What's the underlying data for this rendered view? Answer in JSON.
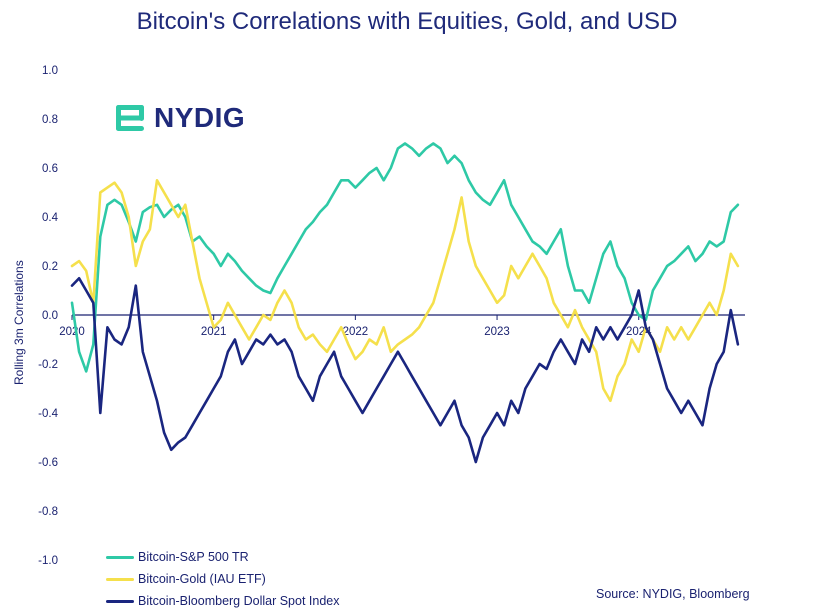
{
  "brand": {
    "name": "NYDIG",
    "accent": "#2ec9a6",
    "navy": "#1f2a7a"
  },
  "chart_data": {
    "type": "line",
    "title": "Bitcoin's Correlations with Equities, Gold, and USD",
    "xlabel": "",
    "ylabel": "Rolling 3m Correlations",
    "xlim": [
      2020.0,
      2024.75
    ],
    "ylim": [
      -1.0,
      1.0
    ],
    "yticks": [
      1.0,
      0.8,
      0.6,
      0.4,
      0.2,
      0.0,
      -0.2,
      -0.4,
      -0.6,
      -0.8,
      -1.0
    ],
    "ytick_labels": [
      "1.0",
      "0.8",
      "0.6",
      "0.4",
      "0.2",
      "0.0",
      "-0.2",
      "-0.4",
      "-0.6",
      "-0.8",
      "-1.0"
    ],
    "xticks": [
      2020,
      2021,
      2022,
      2023,
      2024
    ],
    "xtick_labels": [
      "2020",
      "2021",
      "2022",
      "2023",
      "2024"
    ],
    "grid": false,
    "legend_position": "bottom-left",
    "source": "Source: NYDIG, Bloomberg",
    "series": [
      {
        "name": "Bitcoin-S&P 500 TR",
        "color": "#2ec9a6",
        "x": [
          2020.0,
          2020.05,
          2020.1,
          2020.15,
          2020.2,
          2020.25,
          2020.3,
          2020.35,
          2020.4,
          2020.45,
          2020.5,
          2020.55,
          2020.6,
          2020.65,
          2020.7,
          2020.75,
          2020.8,
          2020.85,
          2020.9,
          2020.95,
          2021.0,
          2021.05,
          2021.1,
          2021.15,
          2021.2,
          2021.25,
          2021.3,
          2021.35,
          2021.4,
          2021.45,
          2021.5,
          2021.55,
          2021.6,
          2021.65,
          2021.7,
          2021.75,
          2021.8,
          2021.85,
          2021.9,
          2021.95,
          2022.0,
          2022.05,
          2022.1,
          2022.15,
          2022.2,
          2022.25,
          2022.3,
          2022.35,
          2022.4,
          2022.45,
          2022.5,
          2022.55,
          2022.6,
          2022.65,
          2022.7,
          2022.75,
          2022.8,
          2022.85,
          2022.9,
          2022.95,
          2023.0,
          2023.05,
          2023.1,
          2023.15,
          2023.2,
          2023.25,
          2023.3,
          2023.35,
          2023.4,
          2023.45,
          2023.5,
          2023.55,
          2023.6,
          2023.65,
          2023.7,
          2023.75,
          2023.8,
          2023.85,
          2023.9,
          2023.95,
          2024.0,
          2024.05,
          2024.1,
          2024.15,
          2024.2,
          2024.25,
          2024.3,
          2024.35,
          2024.4,
          2024.45,
          2024.5,
          2024.55,
          2024.6,
          2024.65,
          2024.7
        ],
        "values": [
          0.05,
          -0.15,
          -0.23,
          -0.12,
          0.32,
          0.45,
          0.47,
          0.45,
          0.38,
          0.3,
          0.42,
          0.44,
          0.45,
          0.4,
          0.43,
          0.45,
          0.4,
          0.3,
          0.32,
          0.28,
          0.25,
          0.2,
          0.25,
          0.22,
          0.18,
          0.15,
          0.12,
          0.1,
          0.09,
          0.15,
          0.2,
          0.25,
          0.3,
          0.35,
          0.38,
          0.42,
          0.45,
          0.5,
          0.55,
          0.55,
          0.52,
          0.55,
          0.58,
          0.6,
          0.55,
          0.6,
          0.68,
          0.7,
          0.68,
          0.65,
          0.68,
          0.7,
          0.68,
          0.62,
          0.65,
          0.62,
          0.55,
          0.5,
          0.47,
          0.45,
          0.5,
          0.55,
          0.45,
          0.4,
          0.35,
          0.3,
          0.28,
          0.25,
          0.3,
          0.35,
          0.2,
          0.1,
          0.1,
          0.05,
          0.15,
          0.25,
          0.3,
          0.2,
          0.15,
          0.05,
          0.0,
          -0.02,
          0.1,
          0.15,
          0.2,
          0.22,
          0.25,
          0.28,
          0.22,
          0.25,
          0.3,
          0.28,
          0.3,
          0.42,
          0.45
        ]
      },
      {
        "name": "Bitcoin-Gold (IAU ETF)",
        "color": "#f5e04c",
        "x": [
          2020.0,
          2020.05,
          2020.1,
          2020.15,
          2020.2,
          2020.25,
          2020.3,
          2020.35,
          2020.4,
          2020.45,
          2020.5,
          2020.55,
          2020.6,
          2020.65,
          2020.7,
          2020.75,
          2020.8,
          2020.85,
          2020.9,
          2020.95,
          2021.0,
          2021.05,
          2021.1,
          2021.15,
          2021.2,
          2021.25,
          2021.3,
          2021.35,
          2021.4,
          2021.45,
          2021.5,
          2021.55,
          2021.6,
          2021.65,
          2021.7,
          2021.75,
          2021.8,
          2021.85,
          2021.9,
          2021.95,
          2022.0,
          2022.05,
          2022.1,
          2022.15,
          2022.2,
          2022.25,
          2022.3,
          2022.35,
          2022.4,
          2022.45,
          2022.5,
          2022.55,
          2022.6,
          2022.65,
          2022.7,
          2022.75,
          2022.8,
          2022.85,
          2022.9,
          2022.95,
          2023.0,
          2023.05,
          2023.1,
          2023.15,
          2023.2,
          2023.25,
          2023.3,
          2023.35,
          2023.4,
          2023.45,
          2023.5,
          2023.55,
          2023.6,
          2023.65,
          2023.7,
          2023.75,
          2023.8,
          2023.85,
          2023.9,
          2023.95,
          2024.0,
          2024.05,
          2024.1,
          2024.15,
          2024.2,
          2024.25,
          2024.3,
          2024.35,
          2024.4,
          2024.45,
          2024.5,
          2024.55,
          2024.6,
          2024.65,
          2024.7
        ],
        "values": [
          0.2,
          0.22,
          0.18,
          0.05,
          0.5,
          0.52,
          0.54,
          0.5,
          0.4,
          0.2,
          0.3,
          0.35,
          0.55,
          0.5,
          0.45,
          0.4,
          0.45,
          0.3,
          0.15,
          0.05,
          -0.05,
          -0.02,
          0.05,
          0.0,
          -0.05,
          -0.1,
          -0.05,
          0.0,
          -0.02,
          0.05,
          0.1,
          0.05,
          -0.05,
          -0.1,
          -0.08,
          -0.12,
          -0.15,
          -0.1,
          -0.05,
          -0.12,
          -0.18,
          -0.15,
          -0.1,
          -0.12,
          -0.05,
          -0.15,
          -0.12,
          -0.1,
          -0.08,
          -0.05,
          0.0,
          0.05,
          0.15,
          0.25,
          0.35,
          0.48,
          0.3,
          0.2,
          0.15,
          0.1,
          0.05,
          0.08,
          0.2,
          0.15,
          0.2,
          0.25,
          0.2,
          0.15,
          0.05,
          0.0,
          -0.05,
          0.02,
          -0.05,
          -0.1,
          -0.15,
          -0.3,
          -0.35,
          -0.25,
          -0.2,
          -0.1,
          -0.15,
          -0.05,
          -0.1,
          -0.15,
          -0.05,
          -0.1,
          -0.05,
          -0.1,
          -0.05,
          0.0,
          0.05,
          0.0,
          0.1,
          0.25,
          0.2
        ]
      },
      {
        "name": "Bitcoin-Bloomberg Dollar Spot Index",
        "color": "#1a2680",
        "x": [
          2020.0,
          2020.05,
          2020.1,
          2020.15,
          2020.2,
          2020.25,
          2020.3,
          2020.35,
          2020.4,
          2020.45,
          2020.5,
          2020.55,
          2020.6,
          2020.65,
          2020.7,
          2020.75,
          2020.8,
          2020.85,
          2020.9,
          2020.95,
          2021.0,
          2021.05,
          2021.1,
          2021.15,
          2021.2,
          2021.25,
          2021.3,
          2021.35,
          2021.4,
          2021.45,
          2021.5,
          2021.55,
          2021.6,
          2021.65,
          2021.7,
          2021.75,
          2021.8,
          2021.85,
          2021.9,
          2021.95,
          2022.0,
          2022.05,
          2022.1,
          2022.15,
          2022.2,
          2022.25,
          2022.3,
          2022.35,
          2022.4,
          2022.45,
          2022.5,
          2022.55,
          2022.6,
          2022.65,
          2022.7,
          2022.75,
          2022.8,
          2022.85,
          2022.9,
          2022.95,
          2023.0,
          2023.05,
          2023.1,
          2023.15,
          2023.2,
          2023.25,
          2023.3,
          2023.35,
          2023.4,
          2023.45,
          2023.5,
          2023.55,
          2023.6,
          2023.65,
          2023.7,
          2023.75,
          2023.8,
          2023.85,
          2023.9,
          2023.95,
          2024.0,
          2024.05,
          2024.1,
          2024.15,
          2024.2,
          2024.25,
          2024.3,
          2024.35,
          2024.4,
          2024.45,
          2024.5,
          2024.55,
          2024.6,
          2024.65,
          2024.7
        ],
        "values": [
          0.12,
          0.15,
          0.1,
          0.05,
          -0.4,
          -0.05,
          -0.1,
          -0.12,
          -0.05,
          0.12,
          -0.15,
          -0.25,
          -0.35,
          -0.48,
          -0.55,
          -0.52,
          -0.5,
          -0.45,
          -0.4,
          -0.35,
          -0.3,
          -0.25,
          -0.15,
          -0.1,
          -0.2,
          -0.15,
          -0.1,
          -0.12,
          -0.08,
          -0.12,
          -0.1,
          -0.15,
          -0.25,
          -0.3,
          -0.35,
          -0.25,
          -0.2,
          -0.15,
          -0.25,
          -0.3,
          -0.35,
          -0.4,
          -0.35,
          -0.3,
          -0.25,
          -0.2,
          -0.15,
          -0.2,
          -0.25,
          -0.3,
          -0.35,
          -0.4,
          -0.45,
          -0.4,
          -0.35,
          -0.45,
          -0.5,
          -0.6,
          -0.5,
          -0.45,
          -0.4,
          -0.45,
          -0.35,
          -0.4,
          -0.3,
          -0.25,
          -0.2,
          -0.22,
          -0.15,
          -0.1,
          -0.15,
          -0.2,
          -0.1,
          -0.15,
          -0.05,
          -0.1,
          -0.05,
          -0.1,
          -0.05,
          0.0,
          0.1,
          -0.05,
          -0.1,
          -0.2,
          -0.3,
          -0.35,
          -0.4,
          -0.35,
          -0.4,
          -0.45,
          -0.3,
          -0.2,
          -0.15,
          0.02,
          -0.12
        ]
      }
    ]
  }
}
